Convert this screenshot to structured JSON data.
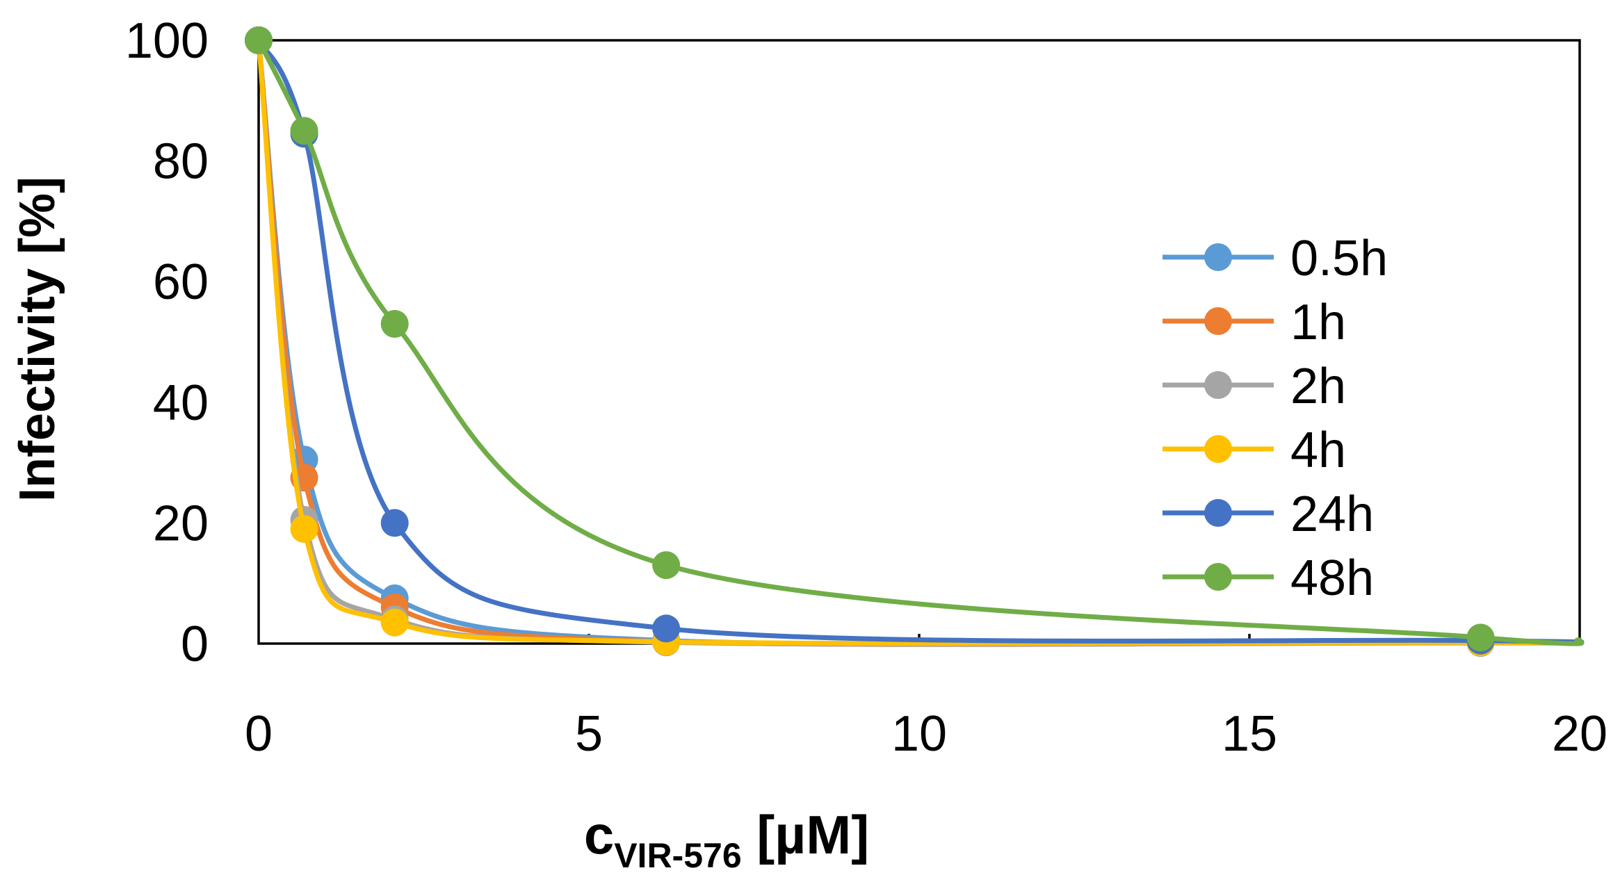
{
  "chart_data": {
    "type": "line",
    "title": "",
    "xlabel_main": "c",
    "xlabel_sub": "VIR-576",
    "xlabel_unit": " [µM]",
    "ylabel": "Infectivity [%]",
    "xlim": [
      0,
      20
    ],
    "ylim": [
      0,
      100
    ],
    "xticks": [
      0,
      5,
      10,
      15,
      20
    ],
    "yticks": [
      0,
      20,
      40,
      60,
      80,
      100
    ],
    "grid": false,
    "legend_position": "right",
    "x": [
      0,
      0.69,
      2.06,
      6.17,
      18.5
    ],
    "series": [
      {
        "name": "0.5h",
        "color": "#5B9BD5",
        "values": [
          100,
          30.5,
          7.5,
          0.5,
          0.2
        ]
      },
      {
        "name": "1h",
        "color": "#ED7D31",
        "values": [
          100,
          27.5,
          6.0,
          0.3,
          0.2
        ]
      },
      {
        "name": "2h",
        "color": "#A5A5A5",
        "values": [
          100,
          20.5,
          4.0,
          0.2,
          0.1
        ]
      },
      {
        "name": "4h",
        "color": "#FFC000",
        "values": [
          100,
          19.0,
          3.5,
          0.3,
          0.2
        ]
      },
      {
        "name": "24h",
        "color": "#4472C4",
        "values": [
          100,
          84.5,
          20.0,
          2.5,
          0.5
        ]
      },
      {
        "name": "48h",
        "color": "#70AD47",
        "values": [
          100,
          85.0,
          53.0,
          13.0,
          1.0
        ]
      }
    ]
  }
}
